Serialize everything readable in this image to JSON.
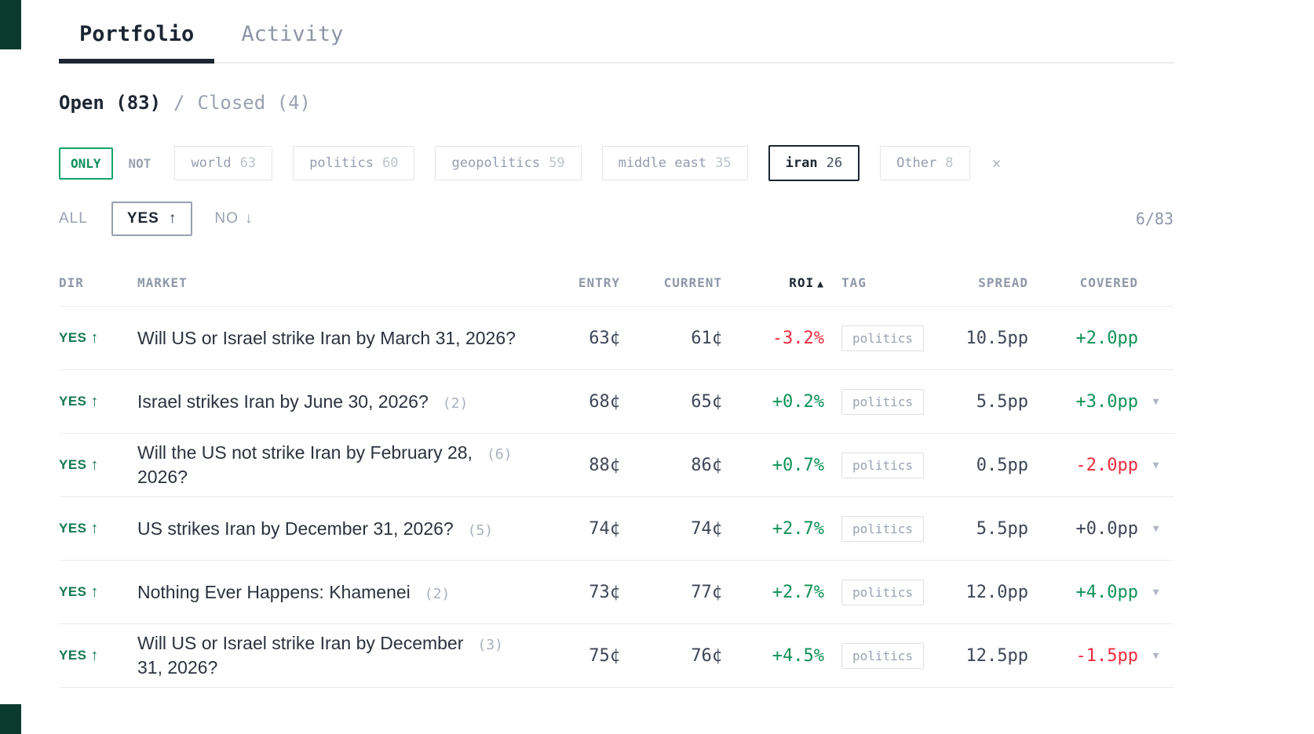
{
  "tabs": {
    "portfolio": "Portfolio",
    "activity": "Activity"
  },
  "positions_toggle": {
    "open": "Open (83)",
    "separator": "/",
    "closed": "Closed (4)"
  },
  "filter_bar": {
    "only": "ONLY",
    "not": "NOT",
    "chips": [
      {
        "label": "world",
        "count": "63",
        "selected": false
      },
      {
        "label": "politics",
        "count": "60",
        "selected": false
      },
      {
        "label": "geopolitics",
        "count": "59",
        "selected": false
      },
      {
        "label": "middle east",
        "count": "35",
        "selected": false
      },
      {
        "label": "iran",
        "count": "26",
        "selected": true
      },
      {
        "label": "Other",
        "count": "8",
        "selected": false
      }
    ],
    "clear": "×"
  },
  "sort_bar": {
    "all": "ALL",
    "yes": "YES",
    "yes_arrow": "↑",
    "no": "NO",
    "no_arrow": "↓",
    "counter": "6/83"
  },
  "table": {
    "headers": {
      "dir": "DIR",
      "market": "MARKET",
      "entry": "ENTRY",
      "current": "CURRENT",
      "roi": "ROI",
      "roi_sort_arrow": "▲",
      "tag": "TAG",
      "spread": "SPREAD",
      "covered": "COVERED"
    },
    "expand_chevron": "▼",
    "rows": [
      {
        "dir": "YES",
        "dir_arrow": "↑",
        "title": "Will US or Israel strike Iran by March 31, 2026?",
        "count": "",
        "entry": "63¢",
        "current": "61¢",
        "roi": "-3.2%",
        "roi_tone": "neg",
        "tag": "politics",
        "spread": "10.5pp",
        "covered": "+2.0pp",
        "covered_tone": "pos",
        "expandable": false
      },
      {
        "dir": "YES",
        "dir_arrow": "↑",
        "title": "Israel strikes Iran by June 30, 2026?",
        "count": "(2)",
        "entry": "68¢",
        "current": "65¢",
        "roi": "+0.2%",
        "roi_tone": "pos",
        "tag": "politics",
        "spread": "5.5pp",
        "covered": "+3.0pp",
        "covered_tone": "pos",
        "expandable": true
      },
      {
        "dir": "YES",
        "dir_arrow": "↑",
        "title": "Will the US not strike Iran by February 28,\n2026?",
        "count": "(6)",
        "entry": "88¢",
        "current": "86¢",
        "roi": "+0.7%",
        "roi_tone": "pos",
        "tag": "politics",
        "spread": "0.5pp",
        "covered": "-2.0pp",
        "covered_tone": "neg",
        "expandable": true
      },
      {
        "dir": "YES",
        "dir_arrow": "↑",
        "title": "US strikes Iran by December 31, 2026?",
        "count": "(5)",
        "entry": "74¢",
        "current": "74¢",
        "roi": "+2.7%",
        "roi_tone": "pos",
        "tag": "politics",
        "spread": "5.5pp",
        "covered": "+0.0pp",
        "covered_tone": "zero",
        "expandable": true
      },
      {
        "dir": "YES",
        "dir_arrow": "↑",
        "title": "Nothing Ever Happens: Khamenei",
        "count": "(2)",
        "entry": "73¢",
        "current": "77¢",
        "roi": "+2.7%",
        "roi_tone": "pos",
        "tag": "politics",
        "spread": "12.0pp",
        "covered": "+4.0pp",
        "covered_tone": "pos",
        "expandable": true
      },
      {
        "dir": "YES",
        "dir_arrow": "↑",
        "title": "Will US or Israel strike Iran by December\n31, 2026?",
        "count": "(3)",
        "entry": "75¢",
        "current": "76¢",
        "roi": "+4.5%",
        "roi_tone": "pos",
        "tag": "politics",
        "spread": "12.5pp",
        "covered": "-1.5pp",
        "covered_tone": "neg",
        "expandable": true
      }
    ]
  },
  "colors": {
    "positive_green": "#0f9157",
    "negative_red": "#ee2b3d",
    "accent_green_border": "#12a568",
    "dark_text": "#1c2633",
    "corner_panel": "#0d3a2e"
  }
}
